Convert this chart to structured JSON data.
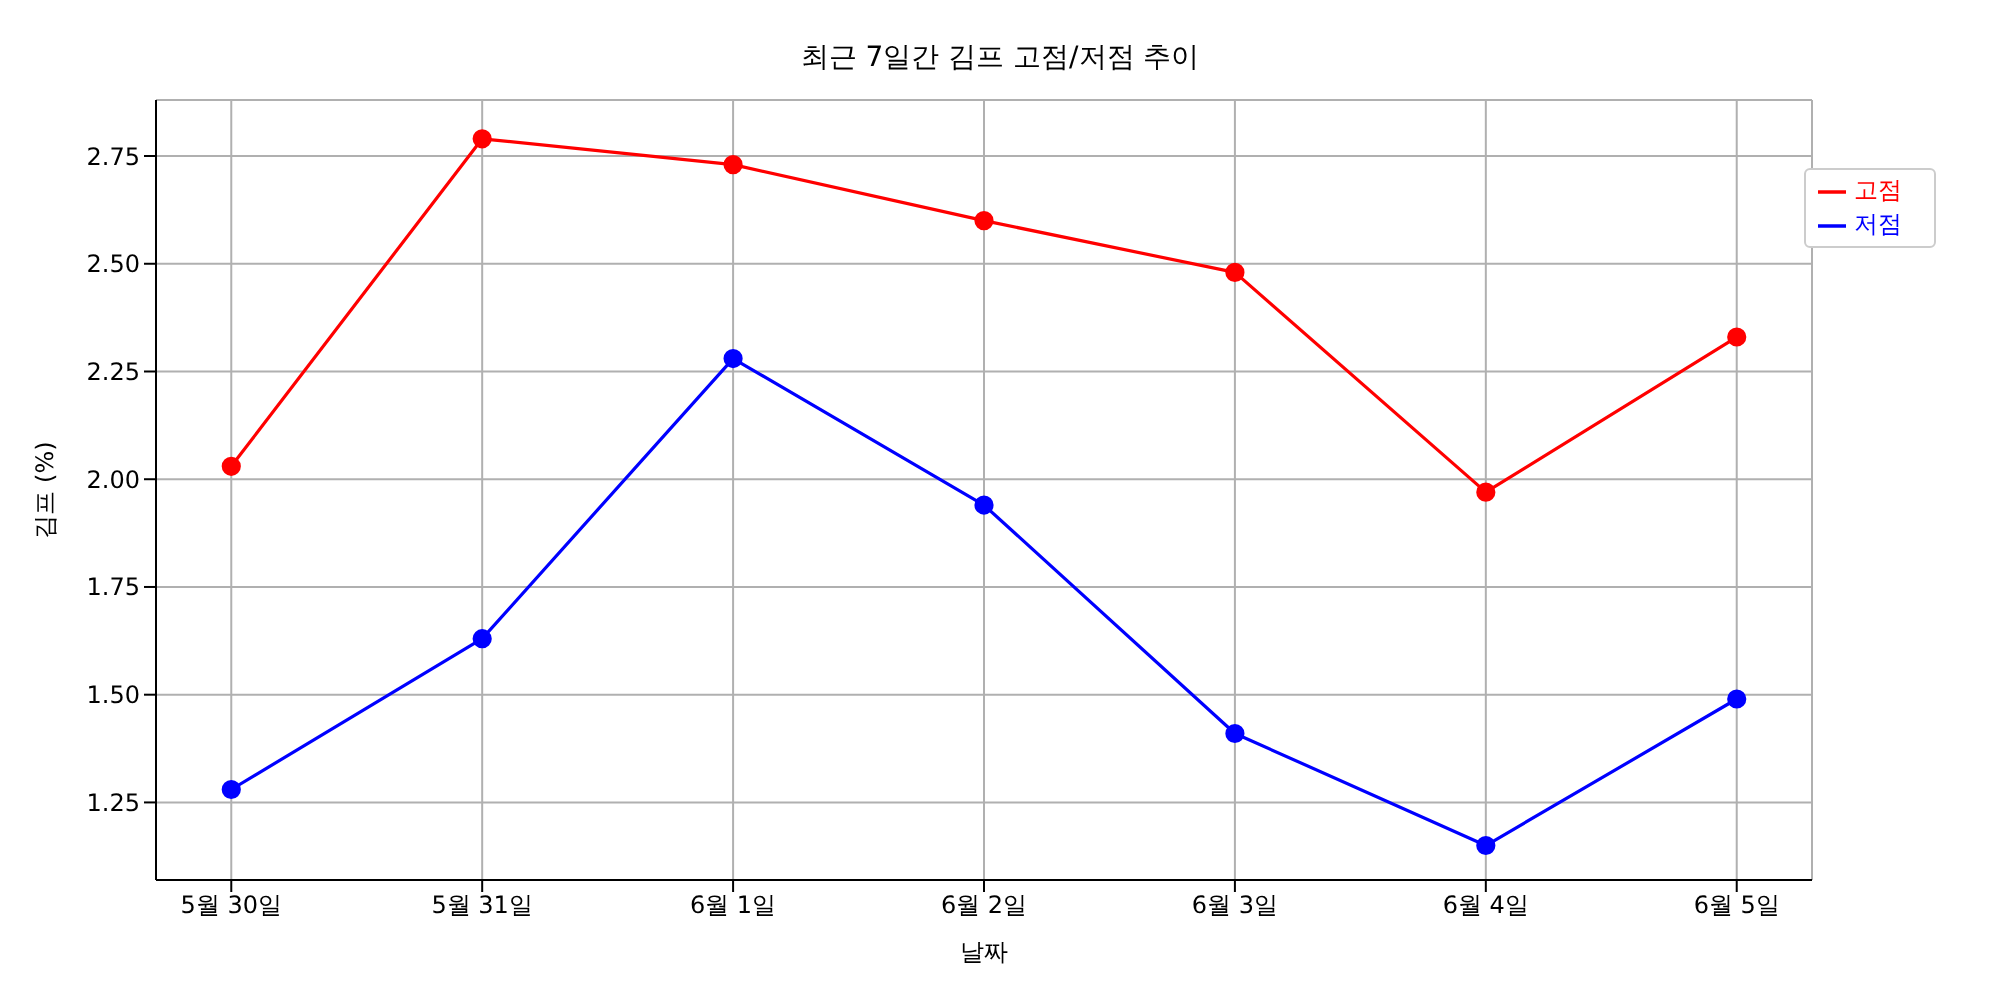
{
  "chart_data": {
    "type": "line",
    "title": "최근 7일간 김프 고점/저점 추이",
    "xlabel": "날짜",
    "ylabel": "김프 (%)",
    "categories": [
      "5월 30일",
      "5월 31일",
      "6월 1일",
      "6월 2일",
      "6월 3일",
      "6월 4일",
      "6월 5일"
    ],
    "series": [
      {
        "name": "고점",
        "color": "#ff0000",
        "values": [
          2.03,
          2.79,
          2.73,
          2.6,
          2.48,
          1.97,
          2.33
        ]
      },
      {
        "name": "저점",
        "color": "#0000ff",
        "values": [
          1.28,
          1.63,
          2.28,
          1.94,
          1.41,
          1.15,
          1.49
        ]
      }
    ],
    "ylim": [
      1.07,
      2.88
    ],
    "yticks": [
      {
        "value": 1.25,
        "label": "1.25"
      },
      {
        "value": 1.5,
        "label": "1.50"
      },
      {
        "value": 1.75,
        "label": "1.75"
      },
      {
        "value": 2,
        "label": "2.00"
      },
      {
        "value": 2.25,
        "label": "2.25"
      },
      {
        "value": 2.5,
        "label": "2.50"
      },
      {
        "value": 2.75,
        "label": "2.75"
      }
    ],
    "grid": true,
    "legend": "top right",
    "marker": "circle",
    "line_style": "solid"
  }
}
